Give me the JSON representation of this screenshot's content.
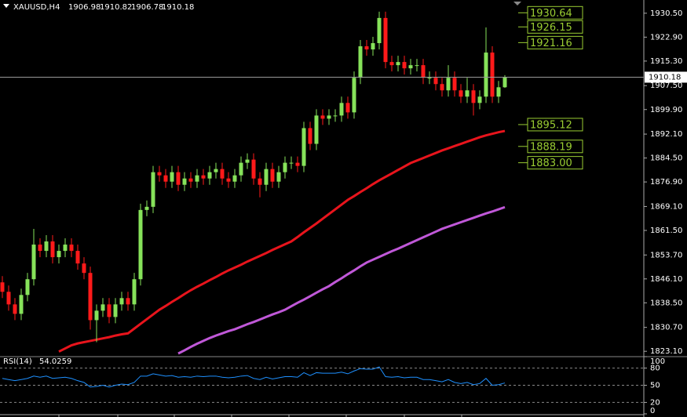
{
  "chart_data": [
    {
      "type": "candlestick",
      "title": "XAUUSD,H4",
      "open": [
        1845,
        1842,
        1838,
        1835,
        1841,
        1846,
        1857,
        1855,
        1858,
        1853,
        1855,
        1857,
        1855,
        1851,
        1848,
        1833,
        1836,
        1838,
        1834,
        1838,
        1840,
        1838,
        1846,
        1868,
        1869,
        1880,
        1879,
        1877,
        1880,
        1876,
        1878,
        1877,
        1879,
        1878,
        1880,
        1881,
        1878,
        1877,
        1879,
        1883,
        1884,
        1878,
        1876,
        1881,
        1877,
        1880,
        1883,
        1883,
        1882,
        1894,
        1889,
        1898,
        1897,
        1898,
        1898,
        1902,
        1899,
        1910,
        1920,
        1919,
        1921,
        1929,
        1915,
        1914,
        1915,
        1913,
        1914,
        1914,
        1910,
        1910,
        1908,
        1906,
        1910,
        1906,
        1904,
        1906,
        1902,
        1904,
        1918,
        1904,
        1906.98
      ],
      "high": [
        1847,
        1844,
        1840,
        1843,
        1848,
        1862,
        1859,
        1860,
        1860,
        1857,
        1859,
        1859,
        1857,
        1853,
        1850,
        1838,
        1840,
        1840,
        1840,
        1842,
        1842,
        1848,
        1870,
        1871,
        1882,
        1882,
        1881,
        1882,
        1882,
        1880,
        1880,
        1881,
        1881,
        1882,
        1883,
        1883,
        1880,
        1881,
        1885,
        1886,
        1886,
        1880,
        1883,
        1883,
        1882,
        1885,
        1885,
        1885,
        1896,
        1896,
        1900,
        1900,
        1900,
        1900,
        1904,
        1904,
        1912,
        1922,
        1922,
        1923,
        1931,
        1931,
        1917,
        1917,
        1917,
        1916,
        1916,
        1916,
        1912,
        1912,
        1910,
        1914,
        1912,
        1908,
        1910,
        1908,
        1906,
        1926,
        1920,
        1909,
        1910.82
      ],
      "low": [
        1840,
        1836,
        1833,
        1833,
        1839,
        1844,
        1853,
        1853,
        1851,
        1851,
        1853,
        1853,
        1849,
        1846,
        1830,
        1826,
        1834,
        1832,
        1832,
        1836,
        1836,
        1836,
        1844,
        1866,
        1867,
        1877,
        1875,
        1875,
        1874,
        1874,
        1875,
        1875,
        1876,
        1876,
        1878,
        1876,
        1875,
        1875,
        1877,
        1881,
        1876,
        1872,
        1874,
        1875,
        1875,
        1878,
        1881,
        1880,
        1880,
        1887,
        1887,
        1895,
        1895,
        1896,
        1896,
        1897,
        1897,
        1908,
        1917,
        1917,
        1919,
        1913,
        1912,
        1912,
        1911,
        1911,
        1912,
        1908,
        1908,
        1906,
        1904,
        1904,
        1904,
        1902,
        1902,
        1898,
        1900,
        1902,
        1902,
        1902,
        1906.78
      ],
      "close": [
        1842,
        1838,
        1835,
        1841,
        1846,
        1857,
        1855,
        1858,
        1853,
        1855,
        1857,
        1855,
        1851,
        1848,
        1833,
        1836,
        1838,
        1834,
        1838,
        1840,
        1838,
        1846,
        1868,
        1869,
        1880,
        1879,
        1877,
        1880,
        1876,
        1878,
        1877,
        1879,
        1878,
        1880,
        1881,
        1878,
        1877,
        1879,
        1883,
        1884,
        1878,
        1876,
        1881,
        1877,
        1880,
        1883,
        1883,
        1882,
        1894,
        1889,
        1898,
        1897,
        1898,
        1898,
        1902,
        1899,
        1910,
        1920,
        1919,
        1921,
        1929,
        1915,
        1914,
        1915,
        1913,
        1914,
        1914,
        1910,
        1910,
        1908,
        1906,
        1910,
        1906,
        1904,
        1906,
        1902,
        1904,
        1918,
        1904,
        1906.98,
        1910.18
      ],
      "up_color": "#86e25a",
      "down_color": "#ff1a1a",
      "series": [
        {
          "color": "#e8141c",
          "values": [
            null,
            null,
            null,
            null,
            null,
            null,
            null,
            null,
            null,
            1823.0,
            1824.0,
            1825.0,
            1825.6,
            1826.0,
            1826.4,
            1826.8,
            1827.2,
            1827.6,
            1828.1,
            1828.5,
            1828.8,
            1830.3,
            1831.8,
            1833.3,
            1834.8,
            1836.3,
            1837.5,
            1838.8,
            1840.0,
            1841.3,
            1842.5,
            1843.6,
            1844.6,
            1845.7,
            1846.7,
            1847.8,
            1848.8,
            1849.7,
            1850.6,
            1851.6,
            1852.5,
            1853.4,
            1854.3,
            1855.3,
            1856.2,
            1857.1,
            1858.0,
            1859.4,
            1860.9,
            1862.3,
            1863.7,
            1865.2,
            1866.7,
            1868.2,
            1869.7,
            1871.2,
            1872.4,
            1873.7,
            1874.9,
            1876.2,
            1877.4,
            1878.5,
            1879.6,
            1880.7,
            1881.8,
            1882.9,
            1883.7,
            1884.5,
            1885.3,
            1886.1,
            1886.9,
            1887.6,
            1888.3,
            1889.0,
            1889.7,
            1890.4,
            1891.1,
            1891.7,
            1892.2,
            1892.7,
            1893.1
          ]
        },
        {
          "color": "#c058d8",
          "values": [
            null,
            null,
            null,
            null,
            null,
            null,
            null,
            null,
            null,
            null,
            null,
            null,
            null,
            null,
            null,
            null,
            null,
            null,
            null,
            null,
            null,
            null,
            null,
            null,
            null,
            null,
            null,
            null,
            1822.4,
            1823.4,
            1824.5,
            1825.5,
            1826.4,
            1827.3,
            1828.1,
            1828.8,
            1829.5,
            1830.1,
            1830.9,
            1831.7,
            1832.4,
            1833.2,
            1834.0,
            1834.8,
            1835.5,
            1836.3,
            1837.4,
            1838.5,
            1839.5,
            1840.6,
            1841.7,
            1842.8,
            1843.8,
            1845.1,
            1846.3,
            1847.6,
            1848.8,
            1850.1,
            1851.3,
            1852.2,
            1853.1,
            1854.0,
            1854.9,
            1855.7,
            1856.6,
            1857.5,
            1858.4,
            1859.3,
            1860.2,
            1861.1,
            1862.0,
            1862.7,
            1863.4,
            1864.1,
            1864.8,
            1865.5,
            1866.2,
            1866.9,
            1867.5,
            1868.2,
            1868.9
          ]
        }
      ],
      "levels": [
        1930.64,
        1926.15,
        1921.16,
        1895.12,
        1888.19,
        {
          "value": 1883,
          "label": "1883.00"
        }
      ],
      "level_color": "#9acd32",
      "ylim": [
        1821.4,
        1934.7
      ],
      "yticks": [
        {
          "value": 1930.5,
          "label": "1930.50"
        },
        {
          "value": 1922.9,
          "label": "1922.90"
        },
        {
          "value": 1915.3,
          "label": "1915.30"
        },
        {
          "value": 1907.5,
          "label": "1907.50"
        },
        {
          "value": 1899.9,
          "label": "1899.90"
        },
        {
          "value": 1892.1,
          "label": "1892.10"
        },
        {
          "value": 1884.5,
          "label": "1884.50"
        },
        {
          "value": 1876.9,
          "label": "1876.90"
        },
        {
          "value": 1869.1,
          "label": "1869.10"
        },
        {
          "value": 1861.5,
          "label": "1861.50"
        },
        {
          "value": 1853.7,
          "label": "1853.70"
        },
        {
          "value": 1846.1,
          "label": "1846.10"
        },
        {
          "value": 1838.5,
          "label": "1838.50"
        },
        {
          "value": 1830.7,
          "label": "1830.70"
        },
        {
          "value": 1823.1,
          "label": "1823.10"
        }
      ],
      "grid": false
    },
    {
      "type": "line",
      "title": "RSI(14)",
      "series": [
        {
          "color": "#1e90ff",
          "values": [
            62,
            60,
            58,
            60,
            62,
            66,
            64,
            66,
            62,
            63,
            64,
            62,
            58,
            55,
            47,
            48,
            50,
            47,
            50,
            52,
            51,
            55,
            66,
            66,
            70,
            68,
            66,
            67,
            64,
            65,
            64,
            66,
            65,
            66,
            66,
            64,
            63,
            64,
            66,
            67,
            62,
            60,
            64,
            61,
            63,
            65,
            65,
            64,
            72,
            67,
            72,
            71,
            71,
            71,
            73,
            70,
            75,
            79,
            78,
            78,
            82,
            65,
            64,
            65,
            63,
            64,
            64,
            60,
            60,
            58,
            56,
            60,
            55,
            53,
            55,
            51,
            53,
            62,
            50,
            51,
            54.0259
          ]
        }
      ],
      "ylim": [
        0,
        100
      ],
      "yticks": [
        100,
        80,
        50,
        20,
        0
      ],
      "grid": true
    }
  ]
}
